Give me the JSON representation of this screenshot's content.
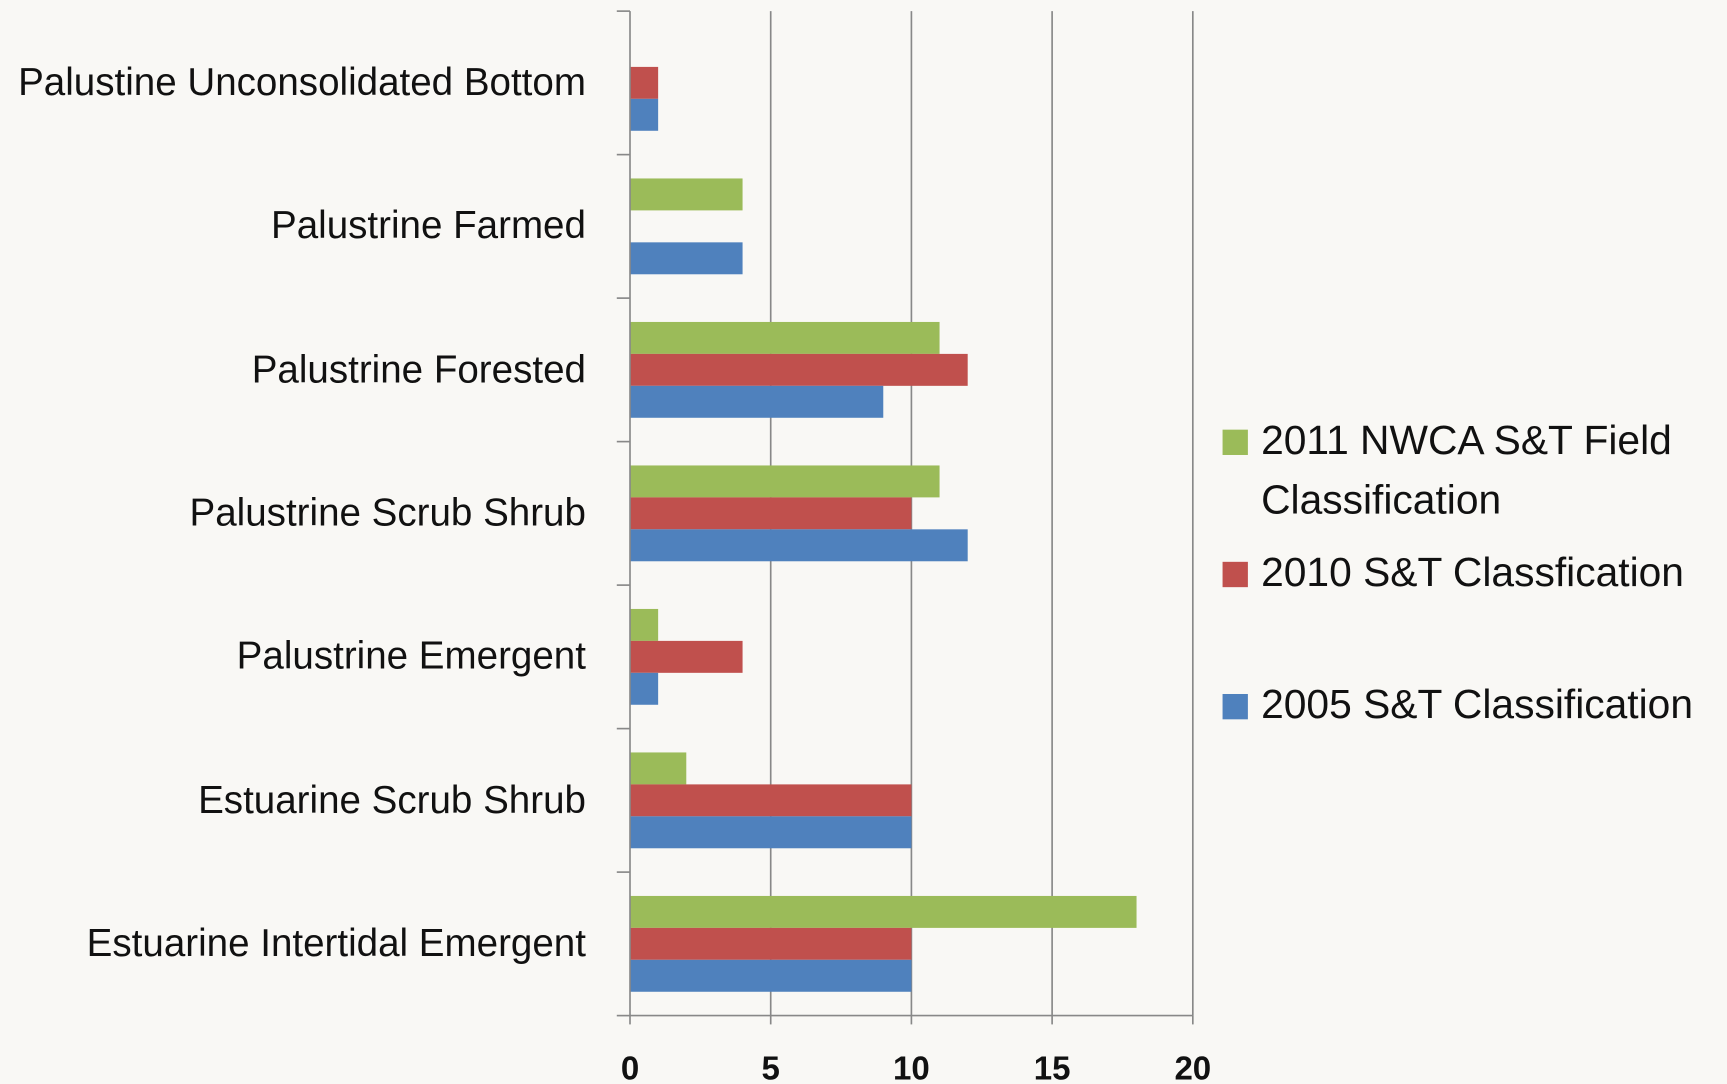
{
  "chart_data": {
    "type": "hbar",
    "categories": [
      "Palustine Unconsolidated Bottom",
      "Palustrine Farmed",
      "Palustrine Forested",
      "Palustrine Scrub Shrub",
      "Palustrine Emergent",
      "Estuarine Scrub Shrub",
      "Estuarine Intertidal Emergent"
    ],
    "series": [
      {
        "name": "2011 NWCA S&T Field Classification",
        "color": "#9bbb59",
        "values": [
          null,
          4,
          11,
          11,
          1,
          2,
          18
        ]
      },
      {
        "name": "2010 S&T Classfication",
        "color": "#c0504d",
        "values": [
          1,
          null,
          12,
          10,
          4,
          10,
          10
        ]
      },
      {
        "name": "2005 S&T Classification",
        "color": "#4f81bd",
        "values": [
          1,
          4,
          9,
          12,
          1,
          10,
          10
        ]
      }
    ],
    "xlim": [
      0,
      20
    ],
    "xticks": [
      0,
      5,
      10,
      15,
      20
    ],
    "grid": true,
    "legend": "right"
  }
}
